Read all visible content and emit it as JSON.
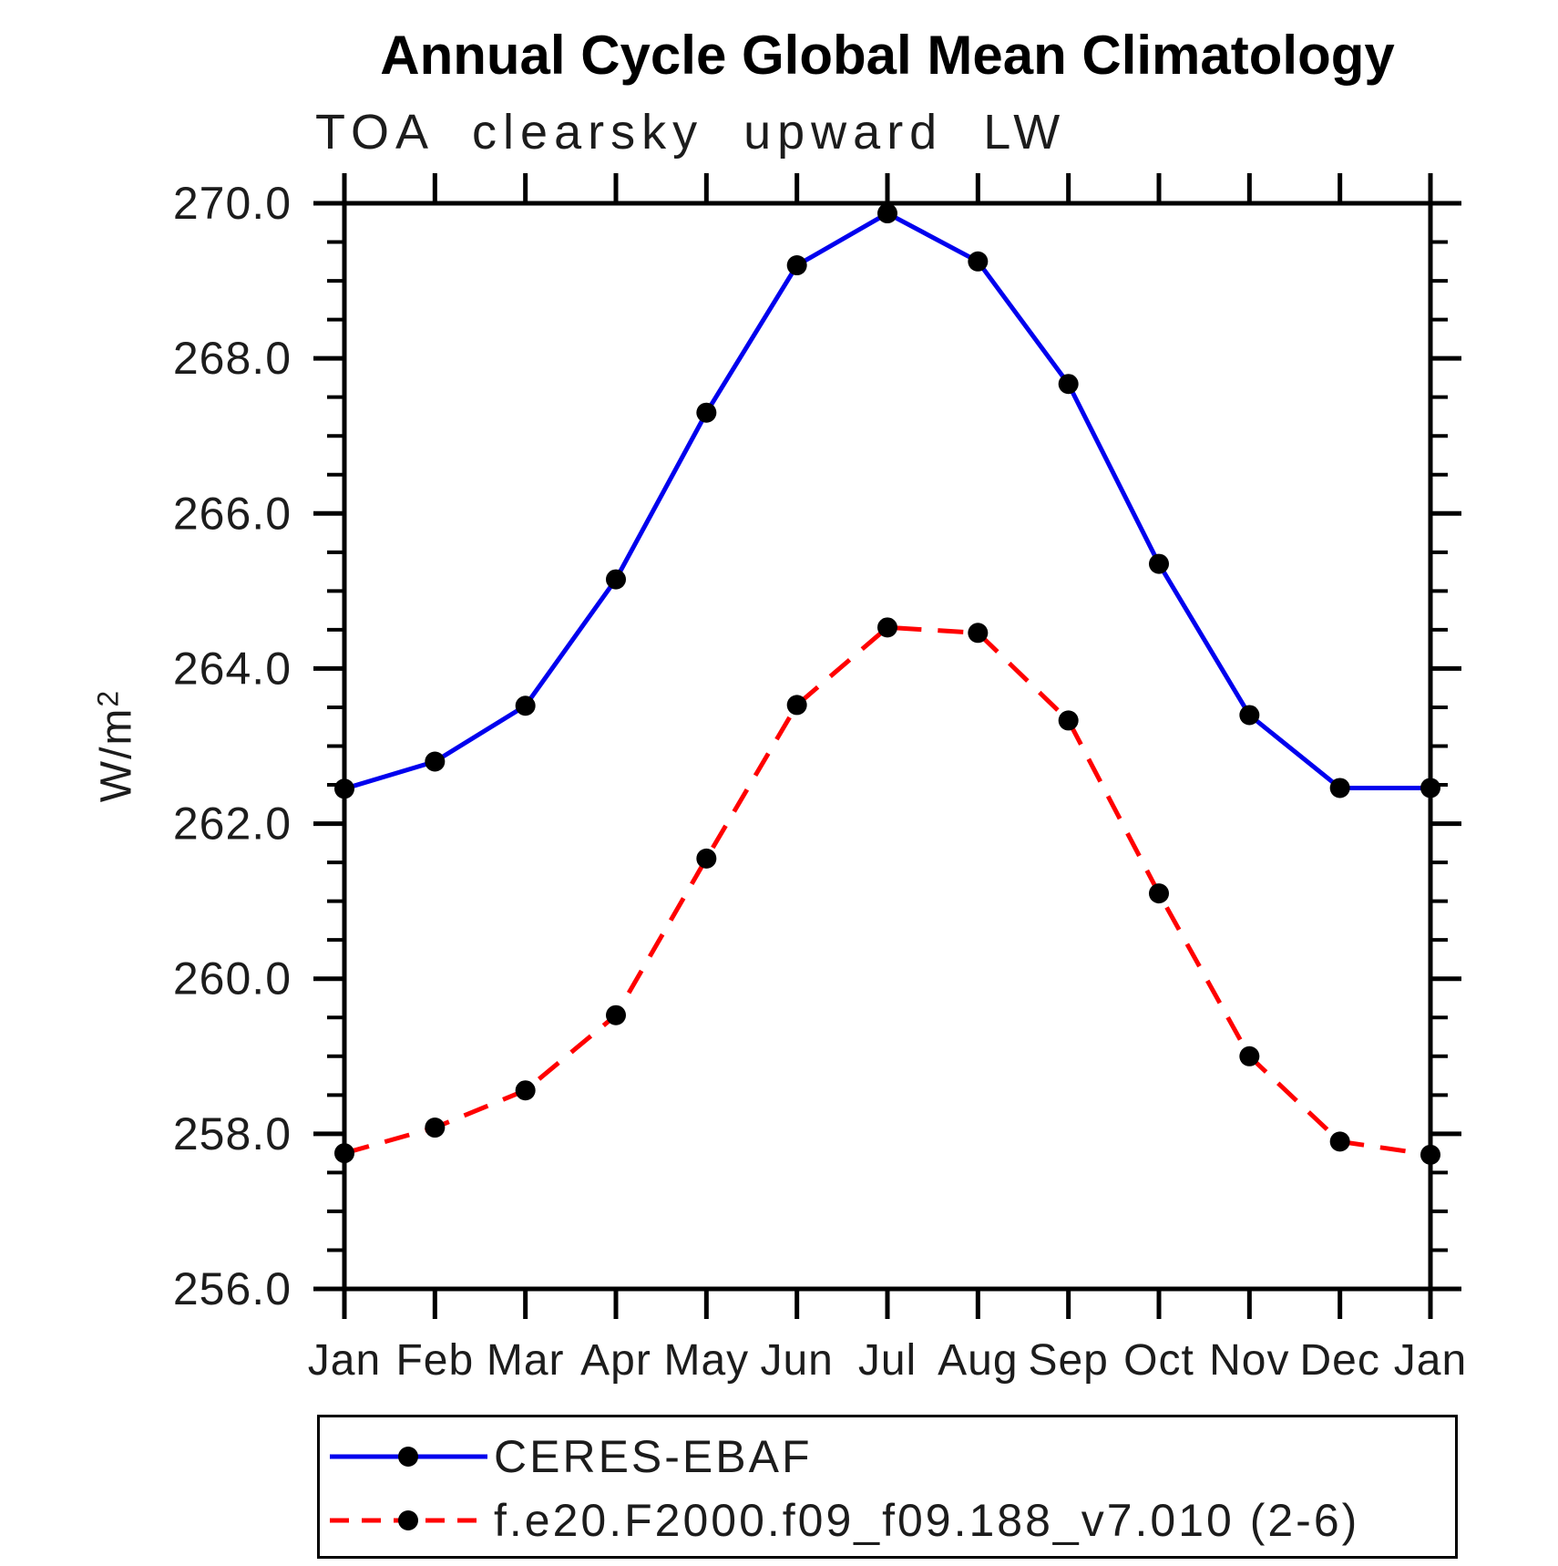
{
  "chart_data": {
    "type": "line",
    "title": "Annual Cycle Global Mean Climatology",
    "subtitle": "TOA clearsky upward LW",
    "ylabel_base": "W/m",
    "ylabel_sup": "2",
    "categories": [
      "Jan",
      "Feb",
      "Mar",
      "Apr",
      "May",
      "Jun",
      "Jul",
      "Aug",
      "Sep",
      "Oct",
      "Nov",
      "Dec",
      "Jan"
    ],
    "ylim": [
      256.0,
      270.0
    ],
    "ytick_major": [
      256,
      258,
      260,
      262,
      264,
      266,
      268,
      270
    ],
    "ytick_labels": [
      "256.0",
      "258.0",
      "260.0",
      "262.0",
      "264.0",
      "266.0",
      "268.0",
      "270.0"
    ],
    "ytick_minor_step": 0.5,
    "grid": false,
    "legend_position": "bottom-left",
    "series": [
      {
        "name": "CERES-EBAF",
        "color": "#0000ee",
        "style": "solid",
        "marker": "circle",
        "marker_color": "#000000",
        "values": [
          262.45,
          262.8,
          263.52,
          265.15,
          267.3,
          269.2,
          269.87,
          269.25,
          267.67,
          265.35,
          263.4,
          262.46,
          262.46
        ]
      },
      {
        "name": "f.e20.F2000.f09_f09.188_v7.010 (2-6)",
        "color": "#ff0000",
        "style": "dashed",
        "marker": "circle",
        "marker_color": "#000000",
        "values": [
          257.75,
          258.08,
          258.56,
          259.53,
          261.55,
          263.53,
          264.53,
          264.46,
          263.33,
          261.1,
          259.0,
          257.9,
          257.73
        ]
      }
    ]
  }
}
